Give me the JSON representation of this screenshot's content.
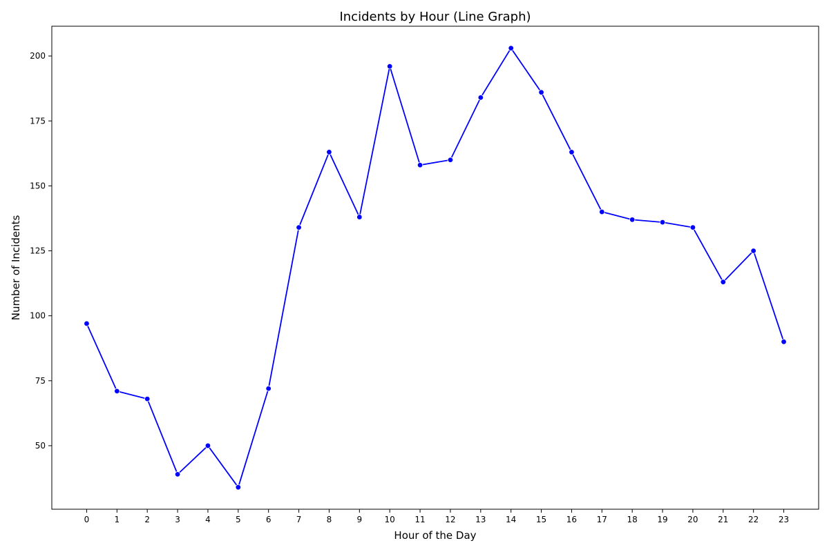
{
  "chart_data": {
    "type": "line",
    "title": "Incidents by Hour (Line Graph)",
    "xlabel": "Hour of the Day",
    "ylabel": "Number of Incidents",
    "x": [
      0,
      1,
      2,
      3,
      4,
      5,
      6,
      7,
      8,
      9,
      10,
      11,
      12,
      13,
      14,
      15,
      16,
      17,
      18,
      19,
      20,
      21,
      22,
      23
    ],
    "series": [
      {
        "values": [
          97,
          71,
          68,
          39,
          50,
          34,
          72,
          134,
          163,
          138,
          196,
          158,
          160,
          184,
          203,
          186,
          163,
          140,
          137,
          136,
          134,
          113,
          125,
          90
        ],
        "color": "#0000ff"
      }
    ],
    "y_ticks": [
      50,
      75,
      100,
      125,
      150,
      175,
      200
    ],
    "x_ticks": [
      0,
      1,
      2,
      3,
      4,
      5,
      6,
      7,
      8,
      9,
      10,
      11,
      12,
      13,
      14,
      15,
      16,
      17,
      18,
      19,
      20,
      21,
      22,
      23
    ],
    "xlim": [
      -1.15,
      24.15
    ],
    "ylim": [
      25.55,
      211.45
    ],
    "grid": false,
    "marker": "circle"
  }
}
